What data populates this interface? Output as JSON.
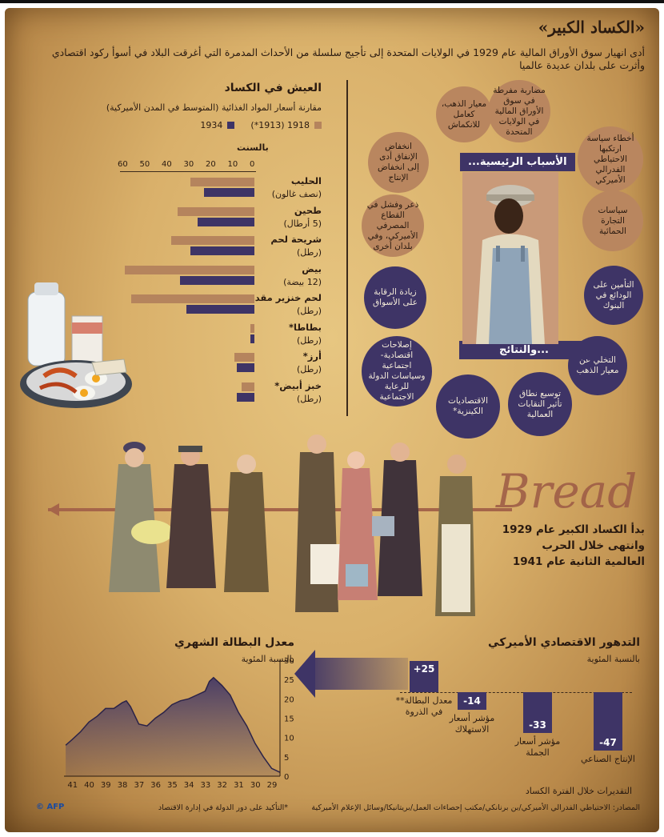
{
  "header": {
    "title": "«الكساد الكبير»",
    "intro": "أدى انهيار سوق الأوراق المالية عام 1929 في الولايات المتحدة إلى تأجيج سلسلة من الأحداث المدمرة التي أغرقت البلاد في أسوأ ركود اقتصادي وأثرت على بلدان عديدة عالميا"
  },
  "living": {
    "title": "العيش في الكساد",
    "subtitle": "مقارنة أسعار المواد الغذائية (المتوسط في المدن الأميركية)",
    "legend_1918": "1918 (1913*)",
    "legend_1934": "1934",
    "axis_unit": "بالسنت",
    "ticks": [
      "60",
      "50",
      "40",
      "30",
      "20",
      "10",
      "0"
    ],
    "colors": {
      "y1918": "#b5845d",
      "y1934": "#3e3466"
    },
    "items": [
      {
        "name": "الحليب",
        "unit": "(نصف غالون)",
        "v1918": 29,
        "v1934": 23
      },
      {
        "name": "طحين",
        "unit": "(5 أرطال)",
        "v1918": 35,
        "v1934": 26
      },
      {
        "name": "شريحة لحم",
        "unit": "(رطل)",
        "v1918": 38,
        "v1934": 29
      },
      {
        "name": "بيض",
        "unit": "(12 بيضة)",
        "v1918": 59,
        "v1934": 34
      },
      {
        "name": "لحم خنزير مقدد",
        "unit": "(رطل)",
        "v1918": 56,
        "v1934": 31
      },
      {
        "name": "بطاطا*",
        "unit": "(رطل)",
        "v1918": 2,
        "v1934": 2
      },
      {
        "name": "أرز*",
        "unit": "(رطل)",
        "v1918": 9,
        "v1934": 8
      },
      {
        "name": "خبز أبيض*",
        "unit": "(رطل)",
        "v1918": 6,
        "v1934": 8
      }
    ]
  },
  "causes": {
    "tag": "الأسباب الرئيسية...",
    "items": [
      "مضاربة مفرطة في سوق الأوراق المالية في الولايات المتحدة",
      "معيار الذهب، كعامل للانكماش",
      "انخفاض الإنفاق أدى إلى انخفاض الإنتاج",
      "ذعر وفشل في القطاع المصرفي الأميركي، وفي بلدان أخرى",
      "أخطاء سياسة ارتكبها الاحتياطي الفدرالي الأميركي",
      "سياسات التجارة الحمائية"
    ]
  },
  "consequences": {
    "tag": "...والنتائج",
    "items": [
      "زيادة الرقابة على الأسواق",
      "إصلاحات اقتصادية- اجتماعية وسياسات الدولة للرعاية الاجتماعية",
      "الاقتصاديات الكينزية*",
      "توسيع نطاق تأثير النقابات العمالية",
      "التخلي عن معيار الذهب",
      "التأمين على الودائع في البنوك"
    ]
  },
  "breadline": {
    "sign": "Bread",
    "caption": "بدأ الكساد الكبير عام 1929 وانتهى خلال الحرب العالمية الثانية عام 1941"
  },
  "unemployment": {
    "title": "معدل البطالة الشهري",
    "unit": "بالنسبة المئوية"
  },
  "chart_data": {
    "type": "area",
    "title": "معدل البطالة الشهري",
    "ylabel": "بالنسبة المئوية",
    "ylim": [
      0,
      30
    ],
    "yticks": [
      "0",
      "5",
      "10",
      "15",
      "20",
      "25",
      "30"
    ],
    "xticks": [
      "29",
      "30",
      "31",
      "32",
      "33",
      "34",
      "35",
      "36",
      "37",
      "38",
      "39",
      "40",
      "41"
    ],
    "x": [
      1929.0,
      1929.5,
      1930.0,
      1930.5,
      1931.0,
      1931.5,
      1932.0,
      1932.5,
      1933.0,
      1933.25,
      1933.5,
      1934.0,
      1934.5,
      1935.0,
      1935.5,
      1936.0,
      1936.5,
      1937.0,
      1937.5,
      1938.0,
      1938.25,
      1938.5,
      1939.0,
      1939.5,
      1940.0,
      1940.5,
      1941.0,
      1941.5,
      1941.9
    ],
    "y": [
      1.0,
      2.0,
      5.0,
      8.5,
      13.0,
      16.5,
      21.0,
      23.5,
      25.5,
      24.5,
      22.0,
      21.0,
      20.0,
      19.5,
      18.5,
      16.5,
      15.0,
      13.0,
      13.5,
      18.0,
      19.5,
      19.0,
      17.5,
      17.5,
      15.5,
      14.0,
      11.5,
      9.5,
      8.0
    ]
  },
  "decline": {
    "title": "التدهور الاقتصادي الأميركي",
    "unit": "بالنسبة المئوية",
    "footnote": "التقديرات خلال الفترة الكساد",
    "items": [
      {
        "value": "+25",
        "label": "معدل البطالة** في الذروة",
        "num": 25
      },
      {
        "value": "-14",
        "label": "مؤشر أسعار الاستهلاك",
        "num": -14
      },
      {
        "value": "-33",
        "label": "مؤشر أسعار الجملة",
        "num": -33
      },
      {
        "value": "-47",
        "label": "الإنتاج الصناعي",
        "num": -47
      }
    ]
  },
  "footer": {
    "sources": "المصادر: الاحتياطي الفدرالي الأميركي/بن برنانكي/مكتب إحصاءات العمل/بريتانيكا/وسائل الإعلام الأميركية",
    "note": "*التأكيد على دور الدولة في إدارة الاقتصاد",
    "credit": "© AFP"
  }
}
